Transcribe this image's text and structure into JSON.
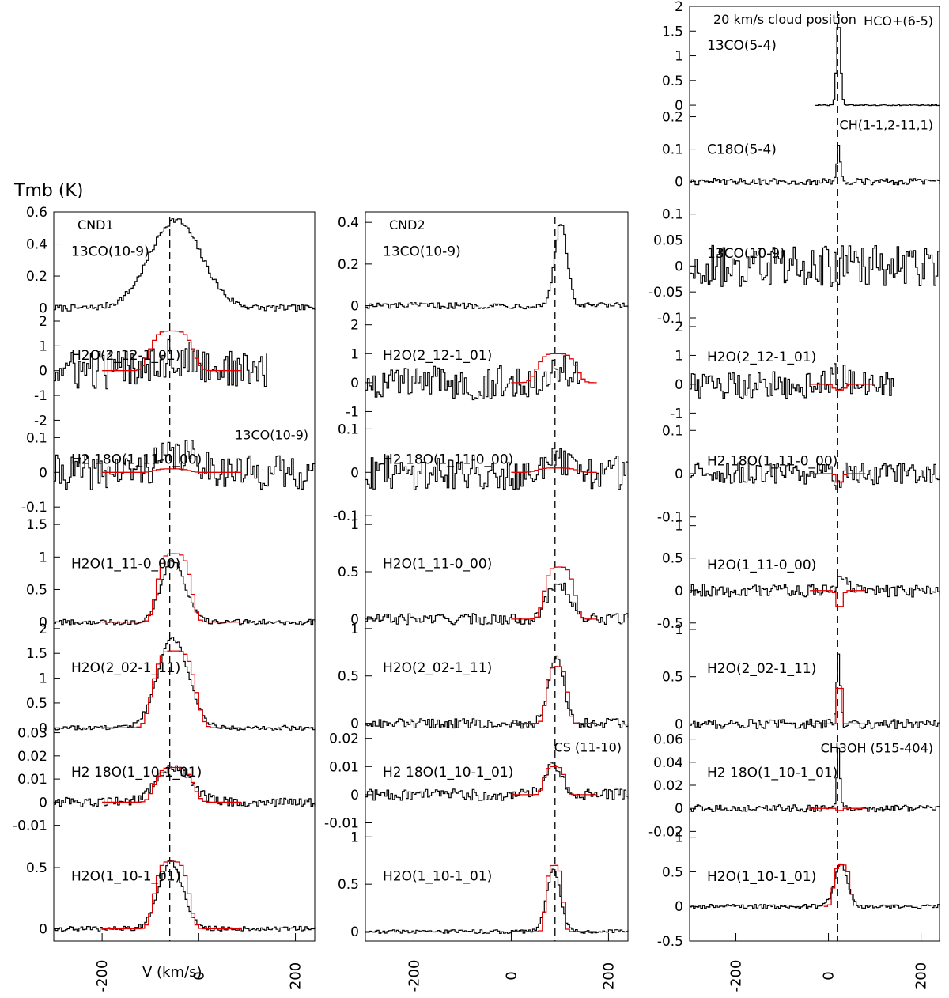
{
  "figure": {
    "ylabel": "Tmb (K)",
    "xlabel": "V (km/s)"
  },
  "colors": {
    "observed": "#000000",
    "model": "#e00000",
    "vline": "#000000"
  },
  "chart_data": [
    {
      "type": "line",
      "column": "CND1",
      "vsys": -60,
      "xlim": [
        -300,
        240
      ],
      "xticks": [
        -200,
        0,
        200
      ],
      "panels": [
        {
          "label": "13CO(10-9)",
          "tag": "CND1",
          "ylim": [
            -0.05,
            0.6
          ],
          "yticks": [
            "0",
            "0.2",
            "0.4",
            "0.6"
          ],
          "obs_peak": 0.55,
          "obs_center": -50,
          "obs_width": 75,
          "noise": 0.02,
          "model": null
        },
        {
          "label": "H2O(2_12-1_01)",
          "ylim": [
            -2,
            2.2
          ],
          "yticks": [
            "-2",
            "-1",
            "0",
            "1",
            "2"
          ],
          "obs_peak": 0.5,
          "obs_center": -60,
          "obs_width": 80,
          "noise": 0.8,
          "obs_xmax": 140,
          "model": {
            "peak": 1.6,
            "center": -60,
            "width": 50,
            "range": [
              -200,
              90
            ]
          }
        },
        {
          "label": "H2 18O(1_11-0_00)",
          "note": "13CO(10-9)",
          "ylim": [
            -0.15,
            0.15
          ],
          "yticks": [
            "-0.1",
            "0",
            "0.1"
          ],
          "obs_peak": 0.05,
          "obs_center": -40,
          "obs_width": 60,
          "noise": 0.05,
          "model": {
            "peak": 0.01,
            "center": -60,
            "width": 40,
            "range": [
              -200,
              90
            ]
          }
        },
        {
          "label": "H2O(1_11-0_00)",
          "ylim": [
            -0.1,
            1.5
          ],
          "yticks": [
            "0",
            "0.5",
            "1",
            "1.5"
          ],
          "obs_peak": 0.95,
          "obs_center": -55,
          "obs_width": 35,
          "noise": 0.04,
          "model": {
            "peak": 1.05,
            "center": -55,
            "width": 40,
            "range": [
              -200,
              90
            ]
          }
        },
        {
          "label": "H2O(2_02-1_11)",
          "ylim": [
            -0.1,
            2.0
          ],
          "yticks": [
            "0",
            "0.5",
            "1",
            "1.5",
            "2"
          ],
          "obs_peak": 1.8,
          "obs_center": -55,
          "obs_width": 45,
          "noise": 0.05,
          "model": {
            "peak": 1.55,
            "center": -55,
            "width": 50,
            "range": [
              -200,
              90
            ]
          }
        },
        {
          "label": "H2 18O(1_10-1_01)",
          "ylim": [
            -0.015,
            0.03
          ],
          "yticks": [
            "-0.01",
            "0",
            "0.01",
            "0.02",
            "0.03"
          ],
          "obs_peak": 0.015,
          "obs_center": -55,
          "obs_width": 50,
          "noise": 0.002,
          "model": {
            "peak": 0.015,
            "center": -55,
            "width": 45,
            "range": [
              -200,
              90
            ]
          }
        },
        {
          "label": "H2O(1_10-1_01)",
          "ylim": [
            -0.1,
            0.75
          ],
          "yticks": [
            "0",
            "0.5"
          ],
          "obs_peak": 0.55,
          "obs_center": -60,
          "obs_width": 35,
          "noise": 0.02,
          "model": {
            "peak": 0.55,
            "center": -60,
            "width": 40,
            "range": [
              -200,
              90
            ]
          }
        }
      ]
    },
    {
      "type": "line",
      "column": "CND2",
      "vsys": 90,
      "xlim": [
        -300,
        240
      ],
      "xticks": [
        -200,
        0,
        200
      ],
      "panels": [
        {
          "label": "13CO(10-9)",
          "tag": "CND2",
          "ylim": [
            -0.05,
            0.45
          ],
          "yticks": [
            "0",
            "0.2",
            "0.4"
          ],
          "obs_peak": 0.4,
          "obs_center": 100,
          "obs_width": 18,
          "noise": 0.015,
          "model": null
        },
        {
          "label": "H2O(2_12-1_01)",
          "ylim": [
            -1.3,
            2.3
          ],
          "yticks": [
            "-1",
            "0",
            "1",
            "2"
          ],
          "obs_peak": 0.5,
          "obs_center": 90,
          "obs_width": 40,
          "noise": 0.6,
          "obs_xmax": 140,
          "model": {
            "peak": 1.0,
            "center": 90,
            "width": 45,
            "range": [
              0,
              180
            ]
          }
        },
        {
          "label": "H2 18O(1_11-0_00)",
          "ylim": [
            -0.12,
            0.12
          ],
          "yticks": [
            "-0.1",
            "0",
            "0.1"
          ],
          "obs_peak": 0.02,
          "obs_center": 90,
          "obs_width": 40,
          "noise": 0.04,
          "model": {
            "peak": 0.01,
            "center": 90,
            "width": 45,
            "range": [
              0,
              180
            ]
          }
        },
        {
          "label": "H2O(1_11-0_00)",
          "ylim": [
            -0.1,
            1.0
          ],
          "yticks": [
            "0",
            "0.5",
            "1"
          ],
          "obs_peak": 0.4,
          "obs_center": 95,
          "obs_width": 30,
          "noise": 0.06,
          "model": {
            "peak": 0.55,
            "center": 95,
            "width": 35,
            "range": [
              0,
              180
            ]
          }
        },
        {
          "label": "H2O(2_02-1_11)",
          "ylim": [
            -0.1,
            1.0
          ],
          "yticks": [
            "0",
            "0.5",
            "1"
          ],
          "obs_peak": 0.7,
          "obs_center": 90,
          "obs_width": 22,
          "noise": 0.05,
          "model": {
            "peak": 0.6,
            "center": 90,
            "width": 25,
            "range": [
              0,
              180
            ]
          }
        },
        {
          "label": "H2 18O(1_10-1_01)",
          "note": "CS (11-10)",
          "ylim": [
            -0.015,
            0.022
          ],
          "yticks": [
            "-0.01",
            "0",
            "0.01",
            "0.02"
          ],
          "obs_peak": 0.011,
          "obs_center": 85,
          "obs_width": 25,
          "noise": 0.002,
          "model": {
            "peak": 0.01,
            "center": 85,
            "width": 25,
            "range": [
              0,
              180
            ]
          }
        },
        {
          "label": "H2O(1_10-1_01)",
          "ylim": [
            -0.1,
            1.0
          ],
          "yticks": [
            "0",
            "0.5",
            "1"
          ],
          "obs_peak": 0.65,
          "obs_center": 85,
          "obs_width": 20,
          "noise": 0.02,
          "model": {
            "peak": 0.7,
            "center": 85,
            "width": 20,
            "range": [
              0,
              180
            ]
          }
        }
      ]
    },
    {
      "type": "line",
      "column": "20 km/s cloud position",
      "vsys": 20,
      "xlim": [
        -300,
        240
      ],
      "xticks": [
        -200,
        0,
        200
      ],
      "panels": [
        {
          "label": "13CO(5-4)",
          "tag": "20 km/s cloud position",
          "note": "HCO+(6-5)",
          "ylim": [
            -0.1,
            2.0
          ],
          "yticks": [
            "0",
            "0.5",
            "1",
            "1.5",
            "2"
          ],
          "obs_peak": 1.75,
          "obs_center": 20,
          "obs_width": 6,
          "noise": 0.01,
          "obs_xmin": -30,
          "model": null
        },
        {
          "label": "C18O(5-4)",
          "note": "CH(1-1,2-11,1)",
          "ylim": [
            -0.1,
            0.22
          ],
          "yticks": [
            "0",
            "0.1",
            "0.2"
          ],
          "obs_peak": 0.12,
          "obs_center": 20,
          "obs_width": 5,
          "noise": 0.01,
          "model": null
        },
        {
          "label": "13CO(10-9)",
          "ylim": [
            -0.1,
            0.1
          ],
          "yticks": [
            "-0.1",
            "-0.05",
            "0",
            "0.05",
            "0.1"
          ],
          "obs_peak": 0.0,
          "obs_center": 20,
          "obs_width": 10,
          "noise": 0.04,
          "model": null
        },
        {
          "label": "H2O(2_12-1_01)",
          "ylim": [
            -1.3,
            2.3
          ],
          "yticks": [
            "-1",
            "0",
            "1",
            "2"
          ],
          "obs_peak": 0.3,
          "obs_center": 20,
          "obs_width": 20,
          "noise": 0.5,
          "obs_xmax": 140,
          "model": {
            "peak": -0.2,
            "center": 20,
            "width": 15,
            "range": [
              -40,
              100
            ]
          }
        },
        {
          "label": "H2 18O(1_11-0_00)",
          "ylim": [
            -0.12,
            0.12
          ],
          "yticks": [
            "-0.1",
            "0",
            "0.1"
          ],
          "obs_peak": -0.04,
          "obs_center": 20,
          "obs_width": 6,
          "noise": 0.025,
          "model": {
            "peak": -0.02,
            "center": 20,
            "width": 10,
            "range": [
              -40,
              80
            ]
          }
        },
        {
          "label": "H2O(1_11-0_00)",
          "ylim": [
            -0.6,
            1.0
          ],
          "yticks": [
            "-0.5",
            "0",
            "0.5",
            "1"
          ],
          "obs_peak": 0.2,
          "obs_center": 30,
          "obs_width": 15,
          "noise": 0.1,
          "model": {
            "peak": -0.25,
            "center": 20,
            "width": 10,
            "range": [
              -40,
              80
            ]
          }
        },
        {
          "label": "H2O(2_02-1_11)",
          "ylim": [
            -0.1,
            1.0
          ],
          "yticks": [
            "0",
            "0.5",
            "1"
          ],
          "obs_peak": 0.7,
          "obs_center": 20,
          "obs_width": 6,
          "noise": 0.05,
          "model": {
            "peak": 0.4,
            "center": 20,
            "width": 8,
            "range": [
              -40,
              80
            ]
          }
        },
        {
          "label": "H2 18O(1_10-1_01)",
          "note": "CH3OH (515-404)",
          "ylim": [
            -0.025,
            0.065
          ],
          "yticks": [
            "-0.02",
            "0",
            "0.02",
            "0.04",
            "0.06"
          ],
          "obs_peak": 0.05,
          "obs_center": 20,
          "obs_width": 5,
          "noise": 0.003,
          "model": {
            "peak": -0.002,
            "center": 20,
            "width": 8,
            "range": [
              -40,
              80
            ]
          }
        },
        {
          "label": "H2O(1_10-1_01)",
          "ylim": [
            -0.5,
            1.0
          ],
          "yticks": [
            "-0.5",
            "0",
            "0.5",
            "1"
          ],
          "obs_peak": 0.6,
          "obs_center": 25,
          "obs_width": 20,
          "noise": 0.03,
          "model": {
            "peak": 0.6,
            "center": 25,
            "width": 20,
            "range": [
              -10,
              60
            ]
          }
        }
      ]
    }
  ]
}
